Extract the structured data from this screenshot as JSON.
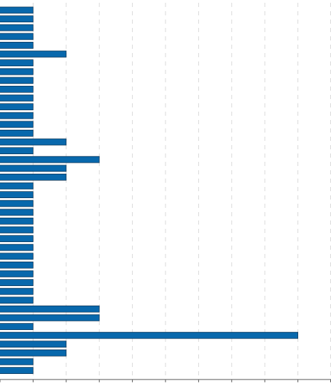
{
  "chart_data": {
    "type": "bar",
    "orientation": "horizontal",
    "categories": [
      "",
      "",
      "",
      "",
      "",
      "",
      "",
      "",
      "",
      "",
      "",
      "",
      "",
      "",
      "",
      "",
      "",
      "",
      "",
      "",
      "",
      "",
      "",
      "",
      "",
      "",
      "",
      "",
      "",
      "",
      "",
      "",
      "",
      "",
      "",
      "",
      "",
      "",
      "",
      "",
      "",
      ""
    ],
    "values": [
      1,
      1,
      1,
      1,
      1,
      2,
      1,
      1,
      1,
      1,
      1,
      1,
      1,
      1,
      1,
      2,
      1,
      3,
      2,
      2,
      1,
      1,
      1,
      1,
      1,
      1,
      1,
      1,
      1,
      1,
      1,
      1,
      1,
      1,
      3,
      3,
      1,
      9,
      2,
      2,
      1,
      1
    ],
    "xlim": [
      0,
      10
    ],
    "x_ticks": [
      0,
      1,
      2,
      3,
      4,
      5,
      6,
      7,
      8,
      9,
      10
    ],
    "grid": true,
    "colors": {
      "bar_fill": "#0868ac",
      "bar_stroke": "#123a5a",
      "grid": "#d9d9d9",
      "axis": "#555555"
    }
  }
}
